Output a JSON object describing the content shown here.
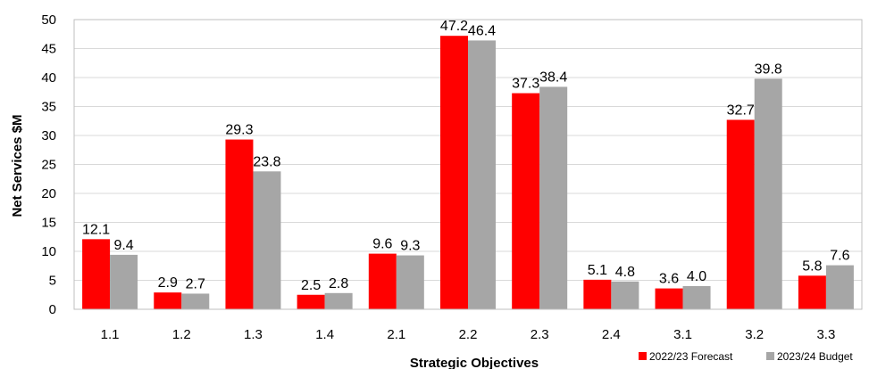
{
  "chart_data": {
    "type": "bar",
    "title": "",
    "xlabel": "Strategic Objectives",
    "ylabel": "Net Services $M",
    "ylim": [
      0,
      50
    ],
    "yticks": [
      0,
      5,
      10,
      15,
      20,
      25,
      30,
      35,
      40,
      45,
      50
    ],
    "grid": true,
    "legend_position": "bottom-right",
    "categories": [
      "1.1",
      "1.2",
      "1.3",
      "1.4",
      "2.1",
      "2.2",
      "2.3",
      "2.4",
      "3.1",
      "3.2",
      "3.3"
    ],
    "series": [
      {
        "name": "2022/23 Forecast",
        "color": "#ff0000",
        "values": [
          12.1,
          2.9,
          29.3,
          2.5,
          9.6,
          47.2,
          37.3,
          5.1,
          3.6,
          32.7,
          5.8
        ],
        "labels": [
          "12.1",
          "2.9",
          "29.3",
          "2.5",
          "9.6",
          "47.2",
          "37.3",
          "5.1",
          "3.6",
          "32.7",
          "5.8"
        ]
      },
      {
        "name": "2023/24 Budget",
        "color": "#a6a6a6",
        "values": [
          9.4,
          2.7,
          23.8,
          2.8,
          9.3,
          46.4,
          38.4,
          4.8,
          4.0,
          39.8,
          7.6
        ],
        "labels": [
          "9.4",
          "2.7",
          "23.8",
          "2.8",
          "9.3",
          "46.4",
          "38.4",
          "4.8",
          "4.0",
          "39.8",
          "7.6"
        ]
      }
    ]
  }
}
